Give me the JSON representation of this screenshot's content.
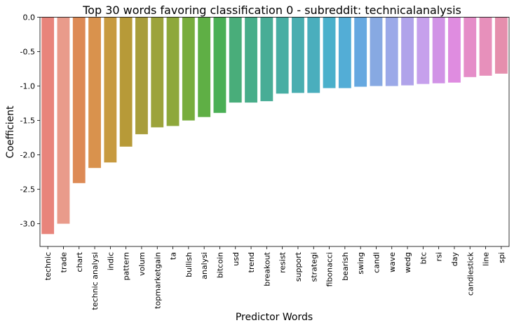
{
  "chart_data": {
    "type": "bar",
    "title": "Top 30 words favoring classification 0 - subreddit: technicalanalysis",
    "xlabel": "Predictor Words",
    "ylabel": "Coefficient",
    "ylim": [
      -3.33,
      0.0
    ],
    "yticks": [
      "0.0",
      "-0.5",
      "-1.0",
      "-1.5",
      "-2.0",
      "-2.5",
      "-3.0"
    ],
    "ytick_values": [
      0.0,
      -0.5,
      -1.0,
      -1.5,
      -2.0,
      -2.5,
      -3.0
    ],
    "grid": false,
    "categories": [
      "technic",
      "trade",
      "chart",
      "technic analysi",
      "indic",
      "pattern",
      "volum",
      "topmarketgain",
      "ta",
      "bullish",
      "analysi",
      "bitcoin",
      "usd",
      "trend",
      "breakout",
      "resist",
      "support",
      "strategi",
      "fibonacci",
      "bearish",
      "swing",
      "candl",
      "wave",
      "wedg",
      "btc",
      "rsi",
      "day",
      "candlestick",
      "line",
      "spi"
    ],
    "values": [
      -3.15,
      -3.0,
      -2.41,
      -2.19,
      -2.11,
      -1.88,
      -1.7,
      -1.6,
      -1.58,
      -1.5,
      -1.45,
      -1.39,
      -1.24,
      -1.24,
      -1.22,
      -1.11,
      -1.1,
      -1.1,
      -1.03,
      -1.03,
      -1.01,
      -1.0,
      -1.0,
      -0.99,
      -0.97,
      -0.96,
      -0.95,
      -0.87,
      -0.85,
      -0.82
    ],
    "colors": [
      "#e8847b",
      "#e99b8b",
      "#dd8a55",
      "#d9924d",
      "#c79a3f",
      "#b79a38",
      "#a89d3c",
      "#9ca33b",
      "#8ea83b",
      "#78ad3d",
      "#5faf45",
      "#4aaf55",
      "#49ad7a",
      "#48ad8a",
      "#48ad96",
      "#48aea3",
      "#49aeb0",
      "#4aaebd",
      "#4ab0cb",
      "#53add6",
      "#66a8e0",
      "#87a9e2",
      "#9ba9e8",
      "#b0a3ea",
      "#c6a0ec",
      "#d193e6",
      "#df8ce0",
      "#e58dc8",
      "#e790bb",
      "#e58fad"
    ]
  }
}
